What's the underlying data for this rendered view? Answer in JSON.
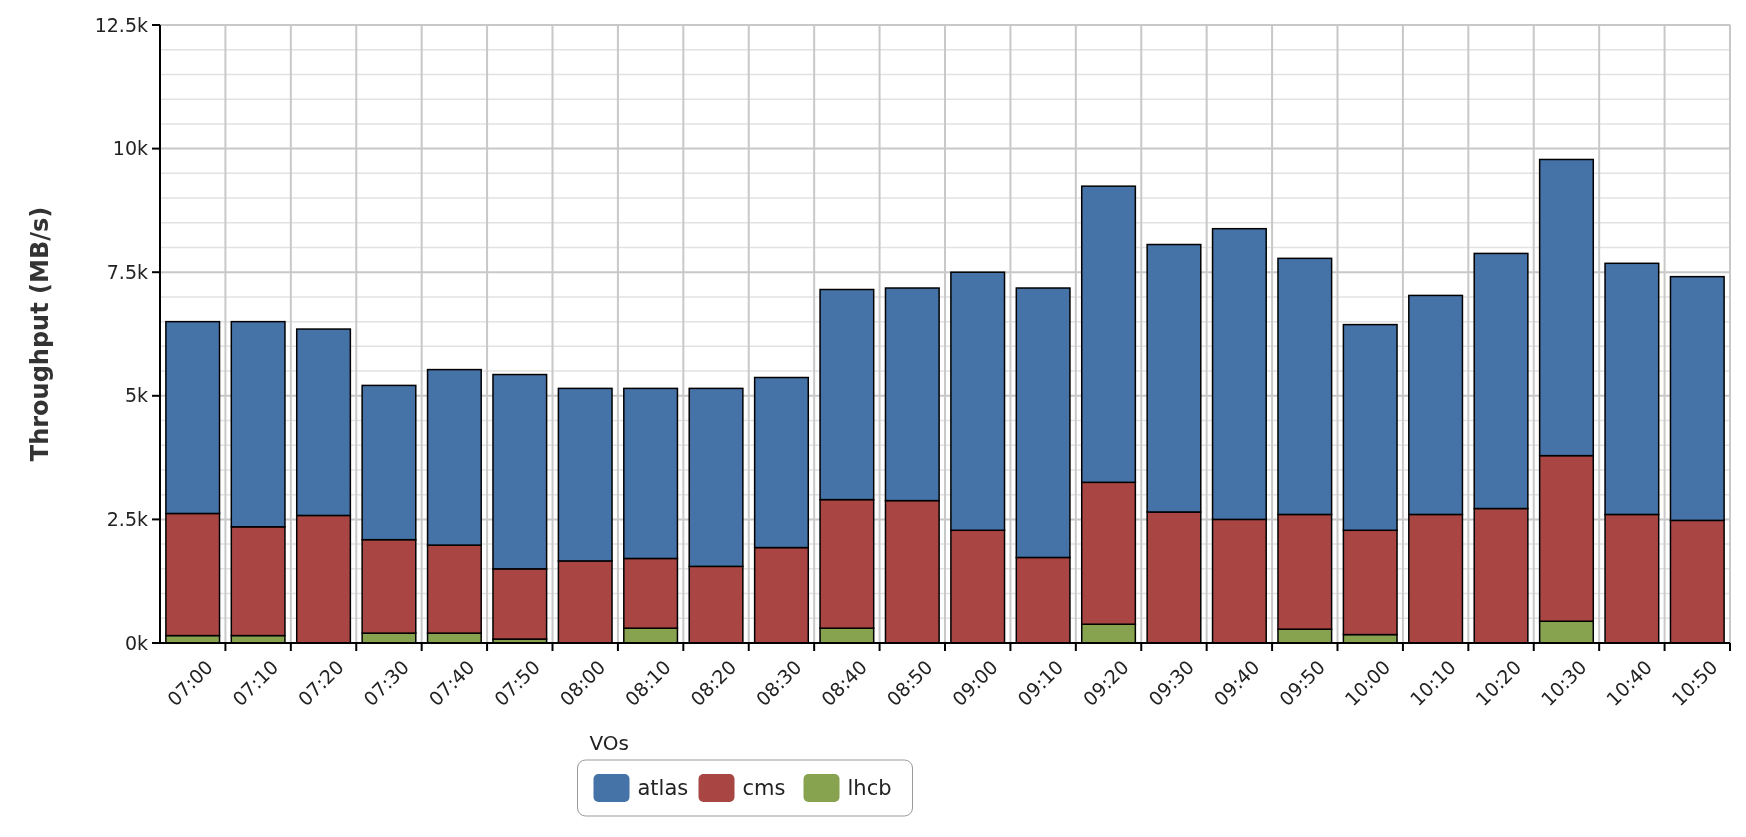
{
  "chart_data": {
    "type": "bar",
    "stacked": true,
    "ylabel": "Throughput (MB/s)",
    "legend_title": "VOs",
    "legend": "bottom",
    "grid": true,
    "categories": [
      "07:00",
      "07:10",
      "07:20",
      "07:30",
      "07:40",
      "07:50",
      "08:00",
      "08:10",
      "08:20",
      "08:30",
      "08:40",
      "08:50",
      "09:00",
      "09:10",
      "09:20",
      "09:30",
      "09:40",
      "09:50",
      "10:00",
      "10:10",
      "10:20",
      "10:30",
      "10:40",
      "10:50"
    ],
    "ylim": [
      0,
      12500
    ],
    "yticks": [
      {
        "value": 0,
        "label": "0k"
      },
      {
        "value": 500,
        "label": null
      },
      {
        "value": 1000,
        "label": null
      },
      {
        "value": 1500,
        "label": null
      },
      {
        "value": 2000,
        "label": null
      },
      {
        "value": 2500,
        "label": "2.5k"
      },
      {
        "value": 3000,
        "label": null
      },
      {
        "value": 3500,
        "label": null
      },
      {
        "value": 4000,
        "label": null
      },
      {
        "value": 4500,
        "label": null
      },
      {
        "value": 5000,
        "label": "5k"
      },
      {
        "value": 5500,
        "label": null
      },
      {
        "value": 6000,
        "label": null
      },
      {
        "value": 6500,
        "label": null
      },
      {
        "value": 7000,
        "label": null
      },
      {
        "value": 7500,
        "label": "7.5k"
      },
      {
        "value": 8000,
        "label": null
      },
      {
        "value": 8500,
        "label": null
      },
      {
        "value": 9000,
        "label": null
      },
      {
        "value": 9500,
        "label": null
      },
      {
        "value": 10000,
        "label": "10k"
      },
      {
        "value": 10500,
        "label": null
      },
      {
        "value": 11000,
        "label": null
      },
      {
        "value": 11500,
        "label": null
      },
      {
        "value": 12000,
        "label": null
      },
      {
        "value": 12500,
        "label": "12.5k"
      }
    ],
    "series": [
      {
        "name": "lhcb",
        "color": "#87a34f",
        "values": [
          150,
          150,
          null,
          200,
          200,
          80,
          null,
          300,
          null,
          null,
          300,
          null,
          null,
          null,
          380,
          null,
          null,
          280,
          170,
          null,
          null,
          440,
          null,
          null
        ]
      },
      {
        "name": "cms",
        "color": "#a94644",
        "values": [
          2470,
          2200,
          2580,
          1890,
          1780,
          1420,
          1660,
          1410,
          1550,
          1930,
          2600,
          2880,
          2280,
          1730,
          2870,
          2650,
          2500,
          2320,
          2110,
          2600,
          2720,
          3350,
          2600,
          2480
        ]
      },
      {
        "name": "atlas",
        "color": "#4572a7",
        "values": [
          3880,
          4150,
          3770,
          3120,
          3550,
          3930,
          3490,
          3440,
          3600,
          3440,
          4250,
          4300,
          5220,
          5450,
          5990,
          5410,
          5880,
          5180,
          4160,
          4430,
          5160,
          5990,
          5080,
          4930
        ]
      }
    ]
  }
}
